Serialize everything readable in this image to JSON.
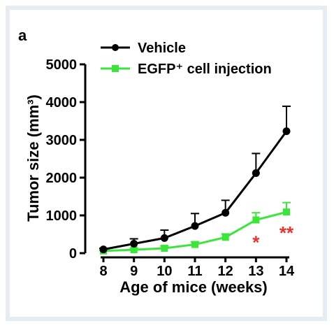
{
  "chart_data": {
    "type": "line",
    "panel_label": "a",
    "xlabel": "Age of mice (weeks)",
    "ylabel": "Tumor size (mm³)",
    "x": [
      8,
      9,
      10,
      11,
      12,
      13,
      14
    ],
    "xlim": [
      8,
      14
    ],
    "ylim": [
      0,
      5000
    ],
    "yticks": [
      0,
      1000,
      2000,
      3000,
      4000,
      5000
    ],
    "series": [
      {
        "name": "Vehicle",
        "color": "#000000",
        "marker": "circle",
        "values": [
          100,
          250,
          400,
          720,
          1070,
          2120,
          3230
        ],
        "errors": [
          30,
          130,
          210,
          330,
          330,
          520,
          660
        ]
      },
      {
        "name": "EGFP⁺ cell injection",
        "color": "#39e639",
        "marker": "square",
        "values": [
          60,
          90,
          130,
          230,
          420,
          880,
          1090
        ],
        "errors": [
          20,
          40,
          60,
          70,
          90,
          190,
          250
        ]
      }
    ],
    "annotations": [
      {
        "x": 13,
        "y": 450,
        "text": "*",
        "color": "#e8352b"
      },
      {
        "x": 14,
        "y": 700,
        "text": "**",
        "color": "#e8352b"
      }
    ],
    "grid": false,
    "legend_position": "top-left"
  }
}
